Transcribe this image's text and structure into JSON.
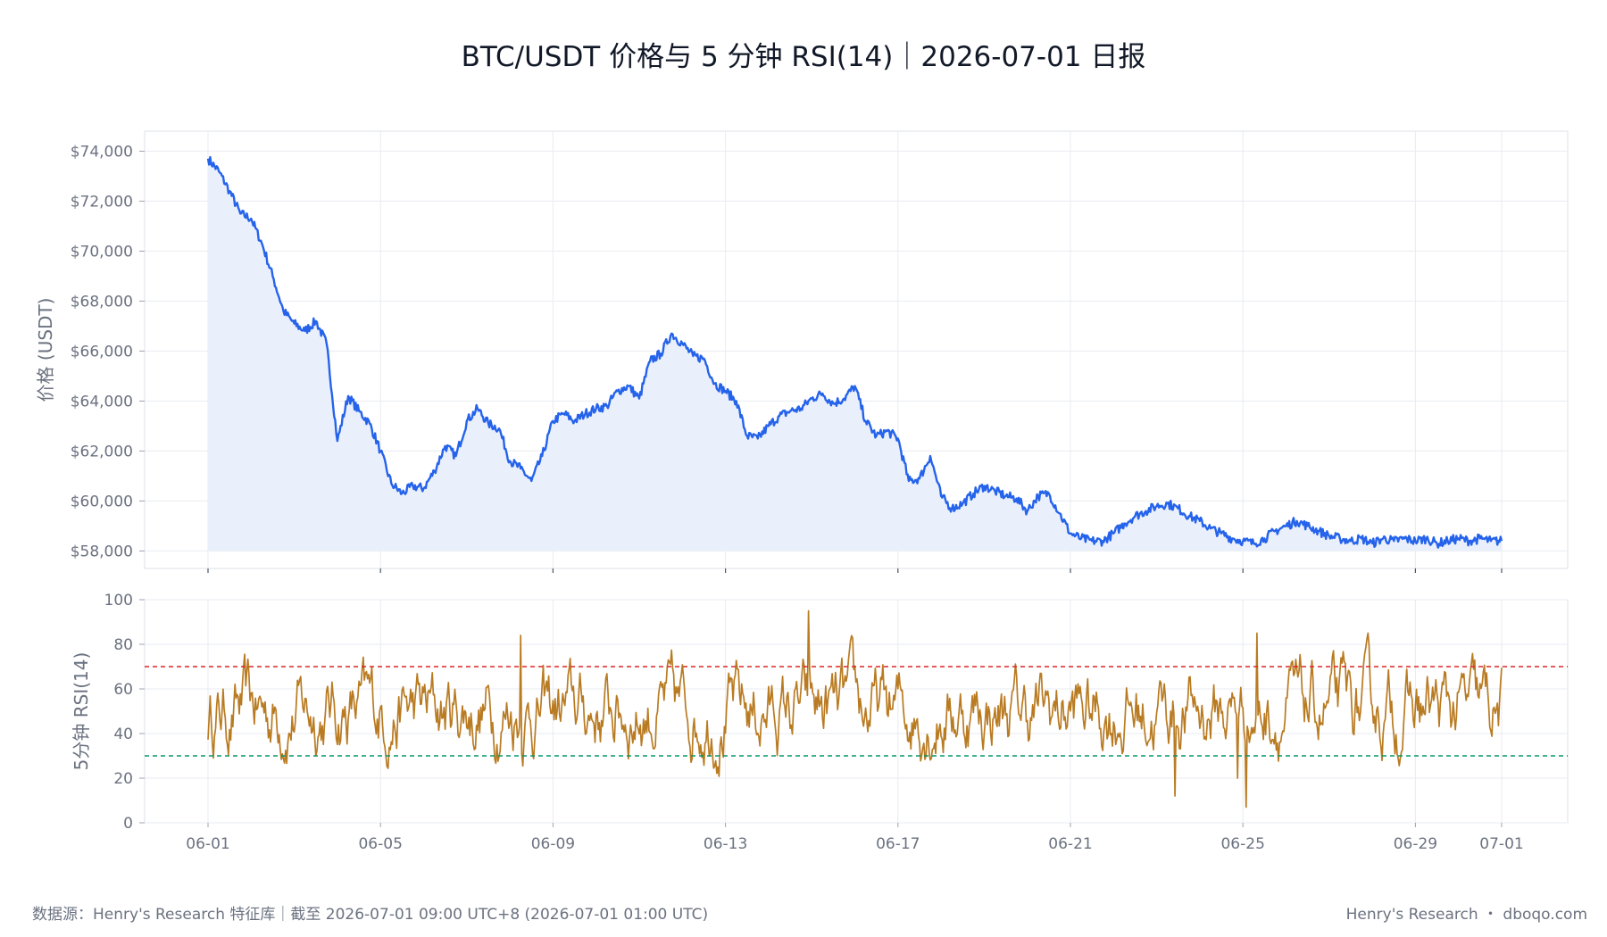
{
  "title": "BTC/USDT 价格与 5 分钟 RSI(14)｜2026-07-01 日报",
  "footer": {
    "source": "数据源：Henry's Research 特征库｜截至 2026-07-01 09:00 UTC+8 (2026-07-01 01:00 UTC)",
    "brand": "Henry's Research ・ dboqo.com"
  },
  "colors": {
    "price_line": "#2563eb",
    "price_fill": "#eaf0fb",
    "rsi_line": "#b97b22",
    "overbought": "#dc2626",
    "oversold": "#059669",
    "grid": "#e9ebf0",
    "frame": "#dde1e7"
  },
  "chart_data": [
    {
      "type": "area",
      "ylabel": "价格 (USDT)",
      "ylim": [
        57300,
        74800
      ],
      "yticks": [
        58000,
        60000,
        62000,
        64000,
        66000,
        68000,
        70000,
        72000,
        74000
      ],
      "ytick_labels": [
        "$58,000",
        "$60,000",
        "$62,000",
        "$64,000",
        "$66,000",
        "$68,000",
        "$70,000",
        "$72,000",
        "$74,000"
      ],
      "xticks": [
        "06-01",
        "06-05",
        "06-09",
        "06-13",
        "06-17",
        "06-21",
        "06-25",
        "06-29",
        "07-01"
      ],
      "grid": true,
      "series": [
        {
          "x": [
            "2026-06-01",
            "2026-06-01 06:00",
            "2026-06-01 12:00",
            "2026-06-01 18:00",
            "2026-06-02",
            "2026-06-02 06:00",
            "2026-06-02 12:00",
            "2026-06-02 18:00",
            "2026-06-03",
            "2026-06-03 06:00",
            "2026-06-03 12:00",
            "2026-06-03 18:00",
            "2026-06-04",
            "2026-06-04 06:00",
            "2026-06-04 12:00",
            "2026-06-04 18:00",
            "2026-06-05",
            "2026-06-05 06:00",
            "2026-06-05 12:00",
            "2026-06-05 18:00",
            "2026-06-06",
            "2026-06-06 06:00",
            "2026-06-06 12:00",
            "2026-06-06 18:00",
            "2026-06-07",
            "2026-06-07 06:00",
            "2026-06-07 12:00",
            "2026-06-07 18:00",
            "2026-06-08",
            "2026-06-08 06:00",
            "2026-06-08 12:00",
            "2026-06-08 18:00",
            "2026-06-09",
            "2026-06-09 06:00",
            "2026-06-09 12:00",
            "2026-06-09 18:00",
            "2026-06-10",
            "2026-06-10 06:00",
            "2026-06-10 12:00",
            "2026-06-10 18:00",
            "2026-06-11",
            "2026-06-11 06:00",
            "2026-06-11 12:00",
            "2026-06-11 18:00",
            "2026-06-12",
            "2026-06-12 06:00",
            "2026-06-12 12:00",
            "2026-06-12 18:00",
            "2026-06-13",
            "2026-06-13 06:00",
            "2026-06-13 12:00",
            "2026-06-13 18:00",
            "2026-06-14",
            "2026-06-14 06:00",
            "2026-06-14 12:00",
            "2026-06-14 18:00",
            "2026-06-15",
            "2026-06-15 06:00",
            "2026-06-15 12:00",
            "2026-06-15 18:00",
            "2026-06-16",
            "2026-06-16 06:00",
            "2026-06-16 12:00",
            "2026-06-16 18:00",
            "2026-06-17",
            "2026-06-17 06:00",
            "2026-06-17 12:00",
            "2026-06-17 18:00",
            "2026-06-18",
            "2026-06-18 06:00",
            "2026-06-18 12:00",
            "2026-06-18 18:00",
            "2026-06-19",
            "2026-06-19 06:00",
            "2026-06-19 12:00",
            "2026-06-19 18:00",
            "2026-06-20",
            "2026-06-20 06:00",
            "2026-06-20 12:00",
            "2026-06-20 18:00",
            "2026-06-21",
            "2026-06-21 06:00",
            "2026-06-21 12:00",
            "2026-06-21 18:00",
            "2026-06-22",
            "2026-06-22 06:00",
            "2026-06-22 12:00",
            "2026-06-22 18:00",
            "2026-06-23",
            "2026-06-23 06:00",
            "2026-06-23 12:00",
            "2026-06-23 18:00",
            "2026-06-24",
            "2026-06-24 06:00",
            "2026-06-24 12:00",
            "2026-06-24 18:00",
            "2026-06-25",
            "2026-06-25 06:00",
            "2026-06-25 12:00",
            "2026-06-25 18:00",
            "2026-06-26",
            "2026-06-26 06:00",
            "2026-06-26 12:00",
            "2026-06-26 18:00",
            "2026-06-27",
            "2026-06-27 06:00",
            "2026-06-27 12:00",
            "2026-06-27 18:00",
            "2026-06-28",
            "2026-06-28 06:00",
            "2026-06-28 12:00",
            "2026-06-28 18:00",
            "2026-06-29",
            "2026-06-29 06:00",
            "2026-06-29 12:00",
            "2026-06-29 18:00",
            "2026-06-30",
            "2026-06-30 06:00",
            "2026-06-30 12:00",
            "2026-06-30 18:00",
            "2026-07-01"
          ],
          "values": [
            73700,
            73200,
            72400,
            71500,
            71300,
            70300,
            69000,
            67600,
            67100,
            66800,
            67200,
            66300,
            62400,
            64200,
            63600,
            63100,
            62000,
            60700,
            60300,
            60600,
            60500,
            61200,
            62200,
            61800,
            63200,
            63700,
            63100,
            62900,
            61600,
            61300,
            60800,
            61800,
            63200,
            63500,
            63200,
            63500,
            63700,
            63800,
            64400,
            64600,
            64100,
            65600,
            65900,
            66700,
            66300,
            65800,
            65700,
            64700,
            64400,
            64000,
            62600,
            62500,
            63000,
            63400,
            63600,
            63700,
            64100,
            64300,
            63900,
            64100,
            64600,
            63200,
            62600,
            62800,
            62500,
            60800,
            60900,
            61800,
            60200,
            59700,
            59900,
            60300,
            60600,
            60400,
            60200,
            60100,
            59600,
            60200,
            60300,
            59500,
            58700,
            58500,
            58400,
            58400,
            58700,
            59100,
            59400,
            59600,
            59800,
            59900,
            59700,
            59400,
            59200,
            58900,
            58700,
            58500,
            58400,
            58300,
            58500,
            58800,
            59000,
            59200,
            59000,
            58800,
            58600,
            58500,
            58400,
            58500,
            58300,
            58500,
            58400,
            58500,
            58400,
            58500,
            58300,
            58400,
            58500,
            58400,
            58500,
            58400,
            58400
          ]
        }
      ]
    },
    {
      "type": "line",
      "ylabel": "5分钟 RSI(14)",
      "ylim": [
        0,
        100
      ],
      "yticks": [
        0,
        20,
        40,
        60,
        80,
        100
      ],
      "xticks": [
        "06-01",
        "06-05",
        "06-09",
        "06-13",
        "06-17",
        "06-21",
        "06-25",
        "06-29",
        "07-01"
      ],
      "grid": true,
      "reference_lines": [
        {
          "y": 70,
          "color": "#dc2626",
          "style": "dashed"
        },
        {
          "y": 30,
          "color": "#059669",
          "style": "dashed"
        }
      ],
      "series": [
        {
          "x_range": [
            "2026-06-01",
            "2026-07-01"
          ],
          "range": [
            7,
            95
          ],
          "typical_range": [
            30,
            70
          ],
          "notable_points": [
            {
              "x": "2026-06-14 22:00",
              "y": 95
            },
            {
              "x": "2026-06-25 08:00",
              "y": 85
            },
            {
              "x": "2026-06-08 06:00",
              "y": 84
            },
            {
              "x": "2026-06-25 02:00",
              "y": 7
            },
            {
              "x": "2026-06-24 21:00",
              "y": 20
            },
            {
              "x": "2026-06-23 10:00",
              "y": 12
            }
          ]
        }
      ]
    }
  ]
}
